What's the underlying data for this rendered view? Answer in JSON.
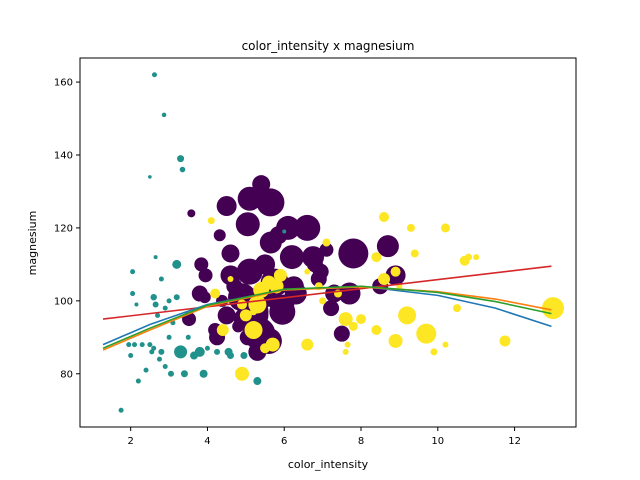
{
  "chart_data": {
    "type": "scatter",
    "title": "color_intensity x magnesium",
    "xlabel": "color_intensity",
    "ylabel": "magnesium",
    "xlim": [
      0.68,
      13.6
    ],
    "ylim": [
      65.4,
      166.6
    ],
    "xticks": [
      2,
      4,
      6,
      8,
      10,
      12
    ],
    "yticks": [
      80,
      100,
      120,
      140,
      160
    ],
    "grid": false,
    "legend": "none",
    "colors": {
      "class_0": "#440154",
      "class_1": "#21918c",
      "class_2": "#fde725",
      "fit_blue": "#1f77b4",
      "fit_orange": "#ff7f0e",
      "fit_green": "#2ca02c",
      "fit_red": "#d62728"
    },
    "series": [
      {
        "class": "class_0",
        "points": [
          {
            "x": 5.64,
            "y": 127,
            "s": 14
          },
          {
            "x": 4.38,
            "y": 100,
            "s": 6
          },
          {
            "x": 5.68,
            "y": 101,
            "s": 10
          },
          {
            "x": 7.8,
            "y": 113,
            "s": 15
          },
          {
            "x": 4.32,
            "y": 118,
            "s": 6
          },
          {
            "x": 6.75,
            "y": 112,
            "s": 11
          },
          {
            "x": 5.25,
            "y": 96,
            "s": 13
          },
          {
            "x": 5.05,
            "y": 121,
            "s": 12
          },
          {
            "x": 5.2,
            "y": 97,
            "s": 15
          },
          {
            "x": 7.22,
            "y": 98,
            "s": 8
          },
          {
            "x": 5.75,
            "y": 105,
            "s": 14
          },
          {
            "x": 5.0,
            "y": 95,
            "s": 12
          },
          {
            "x": 5.6,
            "y": 89,
            "s": 13
          },
          {
            "x": 7.5,
            "y": 91,
            "s": 8
          },
          {
            "x": 7.3,
            "y": 102,
            "s": 9
          },
          {
            "x": 6.2,
            "y": 112,
            "s": 12
          },
          {
            "x": 6.6,
            "y": 120,
            "s": 13
          },
          {
            "x": 8.7,
            "y": 115,
            "s": 11
          },
          {
            "x": 5.1,
            "y": 108,
            "s": 13
          },
          {
            "x": 5.65,
            "y": 116,
            "s": 11
          },
          {
            "x": 4.5,
            "y": 126,
            "s": 10
          },
          {
            "x": 3.8,
            "y": 102,
            "s": 8
          },
          {
            "x": 3.93,
            "y": 101,
            "s": 6
          },
          {
            "x": 3.52,
            "y": 95,
            "s": 7
          },
          {
            "x": 3.58,
            "y": 124,
            "s": 4
          },
          {
            "x": 4.8,
            "y": 93,
            "s": 6
          },
          {
            "x": 3.95,
            "y": 107,
            "s": 7
          },
          {
            "x": 4.5,
            "y": 96,
            "s": 9
          },
          {
            "x": 4.7,
            "y": 104,
            "s": 8
          },
          {
            "x": 5.7,
            "y": 106,
            "s": 10
          },
          {
            "x": 6.9,
            "y": 106,
            "s": 8
          },
          {
            "x": 3.84,
            "y": 110,
            "s": 7
          },
          {
            "x": 5.4,
            "y": 101,
            "s": 12
          },
          {
            "x": 4.2,
            "y": 92,
            "s": 7
          },
          {
            "x": 5.1,
            "y": 96,
            "s": 8
          },
          {
            "x": 4.6,
            "y": 113,
            "s": 9
          },
          {
            "x": 6.25,
            "y": 104,
            "s": 10
          },
          {
            "x": 5.85,
            "y": 118,
            "s": 9
          },
          {
            "x": 6.8,
            "y": 110,
            "s": 8
          },
          {
            "x": 8.9,
            "y": 107,
            "s": 10
          },
          {
            "x": 7.1,
            "y": 114,
            "s": 7
          },
          {
            "x": 4.25,
            "y": 90,
            "s": 8
          },
          {
            "x": 5.4,
            "y": 132,
            "s": 9
          },
          {
            "x": 5.35,
            "y": 91,
            "s": 16
          },
          {
            "x": 5.95,
            "y": 97,
            "s": 13
          },
          {
            "x": 5.1,
            "y": 128,
            "s": 12
          },
          {
            "x": 6.1,
            "y": 120,
            "s": 12
          },
          {
            "x": 4.9,
            "y": 101,
            "s": 14
          },
          {
            "x": 7.7,
            "y": 102,
            "s": 11
          },
          {
            "x": 5.5,
            "y": 110,
            "s": 10
          },
          {
            "x": 6.95,
            "y": 108,
            "s": 8
          },
          {
            "x": 6.3,
            "y": 102,
            "s": 11
          },
          {
            "x": 5.05,
            "y": 90,
            "s": 8
          },
          {
            "x": 4.6,
            "y": 107,
            "s": 10
          },
          {
            "x": 5.3,
            "y": 86,
            "s": 9
          },
          {
            "x": 8.5,
            "y": 104,
            "s": 8
          },
          {
            "x": 6.0,
            "y": 99,
            "s": 10
          }
        ]
      },
      {
        "class": "class_1",
        "points": [
          {
            "x": 2.62,
            "y": 162,
            "s": 2.5
          },
          {
            "x": 2.87,
            "y": 151,
            "s": 2.3
          },
          {
            "x": 3.3,
            "y": 139,
            "s": 3.5
          },
          {
            "x": 3.35,
            "y": 136,
            "s": 2.8
          },
          {
            "x": 2.5,
            "y": 134,
            "s": 1.8
          },
          {
            "x": 2.65,
            "y": 112,
            "s": 2
          },
          {
            "x": 3.2,
            "y": 110,
            "s": 4.5
          },
          {
            "x": 2.05,
            "y": 108,
            "s": 2.5
          },
          {
            "x": 2.8,
            "y": 106,
            "s": 2.5
          },
          {
            "x": 2.05,
            "y": 102,
            "s": 2.5
          },
          {
            "x": 3.2,
            "y": 101,
            "s": 3
          },
          {
            "x": 2.6,
            "y": 101,
            "s": 3.2
          },
          {
            "x": 3.0,
            "y": 100,
            "s": 2.5
          },
          {
            "x": 2.65,
            "y": 99,
            "s": 3
          },
          {
            "x": 2.9,
            "y": 98,
            "s": 2.5
          },
          {
            "x": 2.7,
            "y": 96,
            "s": 2.5
          },
          {
            "x": 3.1,
            "y": 94,
            "s": 2.5
          },
          {
            "x": 3.0,
            "y": 90,
            "s": 2.5
          },
          {
            "x": 1.95,
            "y": 88,
            "s": 2.5
          },
          {
            "x": 2.1,
            "y": 88,
            "s": 2.5
          },
          {
            "x": 2.3,
            "y": 88,
            "s": 2.5
          },
          {
            "x": 2.5,
            "y": 88,
            "s": 2.5
          },
          {
            "x": 2.6,
            "y": 87,
            "s": 2.5
          },
          {
            "x": 2.8,
            "y": 86,
            "s": 3
          },
          {
            "x": 2.55,
            "y": 86,
            "s": 2.5
          },
          {
            "x": 2.0,
            "y": 85,
            "s": 2.5
          },
          {
            "x": 3.3,
            "y": 86,
            "s": 6.5
          },
          {
            "x": 3.8,
            "y": 86,
            "s": 5
          },
          {
            "x": 3.65,
            "y": 85,
            "s": 4
          },
          {
            "x": 4.25,
            "y": 86,
            "s": 3
          },
          {
            "x": 4.55,
            "y": 86,
            "s": 4
          },
          {
            "x": 4.6,
            "y": 85,
            "s": 3.5
          },
          {
            "x": 3.9,
            "y": 80,
            "s": 4
          },
          {
            "x": 3.4,
            "y": 80,
            "s": 3.5
          },
          {
            "x": 3.05,
            "y": 80,
            "s": 3
          },
          {
            "x": 2.9,
            "y": 82,
            "s": 2.5
          },
          {
            "x": 2.4,
            "y": 81,
            "s": 2.5
          },
          {
            "x": 2.2,
            "y": 78,
            "s": 2.5
          },
          {
            "x": 4.95,
            "y": 85,
            "s": 3.5
          },
          {
            "x": 5.3,
            "y": 78,
            "s": 4
          },
          {
            "x": 1.75,
            "y": 70,
            "s": 2.5
          },
          {
            "x": 3.5,
            "y": 90,
            "s": 2.5
          },
          {
            "x": 4.0,
            "y": 87,
            "s": 2.5
          },
          {
            "x": 2.75,
            "y": 84,
            "s": 2.5
          },
          {
            "x": 6.0,
            "y": 119,
            "s": 2
          },
          {
            "x": 2.15,
            "y": 99,
            "s": 2
          }
        ]
      },
      {
        "class": "class_2",
        "points": [
          {
            "x": 13.0,
            "y": 98,
            "s": 11
          },
          {
            "x": 9.7,
            "y": 91,
            "s": 10
          },
          {
            "x": 9.2,
            "y": 96,
            "s": 9
          },
          {
            "x": 8.6,
            "y": 123,
            "s": 5
          },
          {
            "x": 9.3,
            "y": 120,
            "s": 4
          },
          {
            "x": 10.2,
            "y": 120,
            "s": 4.5
          },
          {
            "x": 9.4,
            "y": 113,
            "s": 4
          },
          {
            "x": 10.7,
            "y": 111,
            "s": 5
          },
          {
            "x": 10.8,
            "y": 112,
            "s": 3.5
          },
          {
            "x": 8.4,
            "y": 112,
            "s": 5
          },
          {
            "x": 7.1,
            "y": 116,
            "s": 4
          },
          {
            "x": 8.9,
            "y": 108,
            "s": 5
          },
          {
            "x": 8.6,
            "y": 106,
            "s": 6
          },
          {
            "x": 10.5,
            "y": 98,
            "s": 4
          },
          {
            "x": 7.6,
            "y": 95,
            "s": 7
          },
          {
            "x": 8.0,
            "y": 95,
            "s": 5
          },
          {
            "x": 7.8,
            "y": 93,
            "s": 4.5
          },
          {
            "x": 8.4,
            "y": 92,
            "s": 5
          },
          {
            "x": 8.9,
            "y": 89,
            "s": 7
          },
          {
            "x": 9.9,
            "y": 86,
            "s": 3.5
          },
          {
            "x": 10.2,
            "y": 88,
            "s": 3
          },
          {
            "x": 11.75,
            "y": 89,
            "s": 5.5
          },
          {
            "x": 7.65,
            "y": 88,
            "s": 3
          },
          {
            "x": 7.6,
            "y": 86,
            "s": 3
          },
          {
            "x": 6.6,
            "y": 88,
            "s": 6
          },
          {
            "x": 5.9,
            "y": 107,
            "s": 6.5
          },
          {
            "x": 5.8,
            "y": 104,
            "s": 7
          },
          {
            "x": 5.6,
            "y": 105,
            "s": 7
          },
          {
            "x": 5.4,
            "y": 103,
            "s": 8
          },
          {
            "x": 5.0,
            "y": 96,
            "s": 6
          },
          {
            "x": 5.2,
            "y": 92,
            "s": 9
          },
          {
            "x": 5.3,
            "y": 99,
            "s": 9
          },
          {
            "x": 5.5,
            "y": 87,
            "s": 5
          },
          {
            "x": 5.7,
            "y": 88,
            "s": 7
          },
          {
            "x": 4.9,
            "y": 80,
            "s": 7
          },
          {
            "x": 4.4,
            "y": 92,
            "s": 6
          },
          {
            "x": 4.2,
            "y": 102,
            "s": 5
          },
          {
            "x": 4.1,
            "y": 122,
            "s": 3.5
          },
          {
            "x": 4.9,
            "y": 99,
            "s": 5
          },
          {
            "x": 5.2,
            "y": 97,
            "s": 3.5
          },
          {
            "x": 7.0,
            "y": 100,
            "s": 3.5
          },
          {
            "x": 6.9,
            "y": 104,
            "s": 4
          },
          {
            "x": 7.4,
            "y": 102,
            "s": 4
          },
          {
            "x": 5.8,
            "y": 103,
            "s": 3.5
          },
          {
            "x": 9.0,
            "y": 104,
            "s": 3
          },
          {
            "x": 11.0,
            "y": 112,
            "s": 3
          },
          {
            "x": 4.6,
            "y": 106,
            "s": 3
          },
          {
            "x": 6.6,
            "y": 108,
            "s": 3
          }
        ]
      }
    ],
    "fit_lines": [
      {
        "color": "fit_red",
        "points": [
          [
            1.28,
            95.0
          ],
          [
            12.96,
            109.5
          ]
        ]
      },
      {
        "color": "fit_blue",
        "points": [
          [
            1.28,
            88.0
          ],
          [
            2.5,
            93.5
          ],
          [
            4.0,
            99.0
          ],
          [
            6.0,
            103.0
          ],
          [
            8.0,
            104.0
          ],
          [
            10.0,
            101.5
          ],
          [
            11.5,
            98.0
          ],
          [
            12.96,
            93.0
          ]
        ]
      },
      {
        "color": "fit_orange",
        "points": [
          [
            1.28,
            86.5
          ],
          [
            2.5,
            92.0
          ],
          [
            4.0,
            98.5
          ],
          [
            6.0,
            103.0
          ],
          [
            8.0,
            103.8
          ],
          [
            10.0,
            102.5
          ],
          [
            11.5,
            100.5
          ],
          [
            12.96,
            97.5
          ]
        ]
      },
      {
        "color": "fit_green",
        "points": [
          [
            1.28,
            87.0
          ],
          [
            2.5,
            92.5
          ],
          [
            4.0,
            98.8
          ],
          [
            6.0,
            103.2
          ],
          [
            8.0,
            104.0
          ],
          [
            10.0,
            102.3
          ],
          [
            11.5,
            99.8
          ],
          [
            12.96,
            96.5
          ]
        ]
      }
    ]
  }
}
